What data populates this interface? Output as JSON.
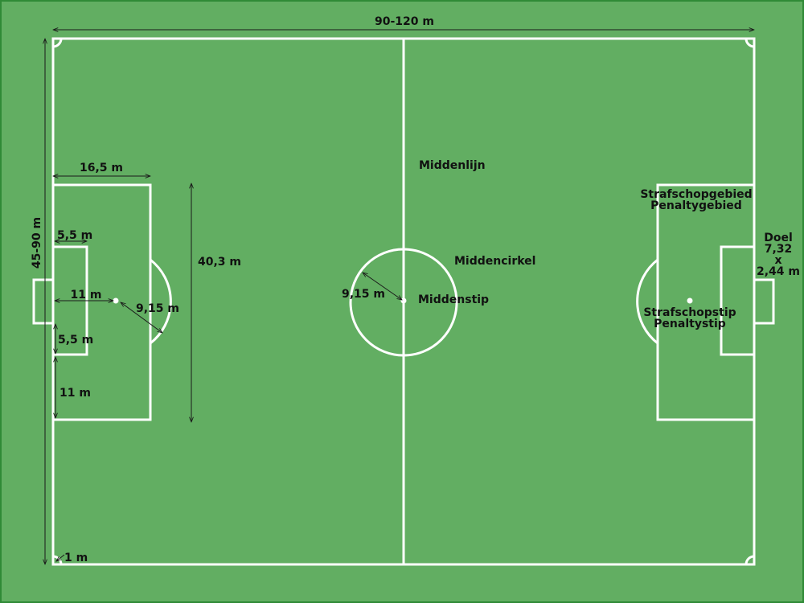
{
  "colors": {
    "grass": "#62ae62",
    "frame": "#2f8a36",
    "lines": "#ffffff",
    "dimension": "#1a1a1a",
    "text": "#111111"
  },
  "dimensions": {
    "length": "90-120 m",
    "width": "45-90 m",
    "penalty_area_depth": "16,5 m",
    "penalty_area_width": "40,3 m",
    "goal_area_depth": "5,5 m",
    "goal_area_offset": "5,5 m",
    "penalty_spot_distance": "11 m",
    "penalty_arc_radius": "9,15 m",
    "penalty_area_offset": "11 m",
    "centre_circle_radius": "9,15 m",
    "corner_arc_radius": "1 m"
  },
  "labels": {
    "halfway_line": "Middenlijn",
    "centre_circle": "Middencirkel",
    "centre_spot": "Middenstip",
    "penalty_area_nl": "Strafschopgebied",
    "penalty_area_be": "Penaltygebied",
    "penalty_spot_nl": "Strafschopstip",
    "penalty_spot_be": "Penaltystip",
    "goal_title": "Doel",
    "goal_width": "7,32",
    "goal_times": "x",
    "goal_height": "2,44 m"
  }
}
